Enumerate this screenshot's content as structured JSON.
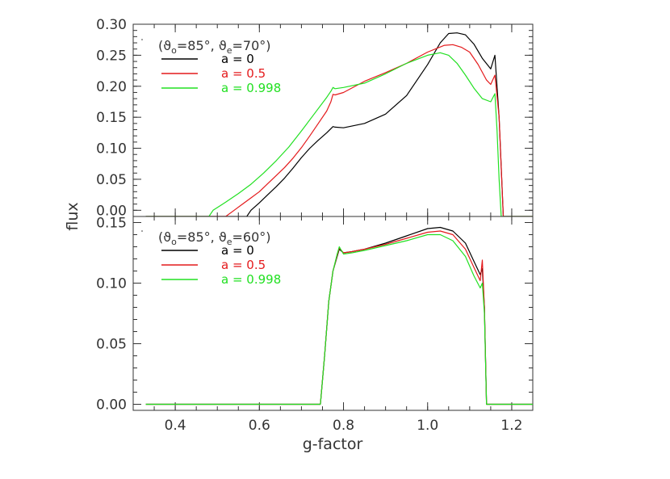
{
  "colors": {
    "a0": "#000000",
    "a05": "#e41a1c",
    "a0998": "#22e022",
    "axis": "#333333"
  },
  "chart_data": [
    {
      "type": "line",
      "panel": "top",
      "xlabel": "g-factor",
      "ylabel": "flux",
      "xlim": [
        0.3,
        1.25
      ],
      "ylim": [
        -0.01,
        0.3
      ],
      "yticks": [
        "0.00",
        "0.05",
        "0.10",
        "0.15",
        "0.20",
        "0.25",
        "0.30"
      ],
      "xticks": [],
      "legend_placement": "top-left",
      "legend_title": {
        "main": "(ϑ",
        "sub1": "o",
        "mid": "=85°,  ϑ",
        "sub2": "e",
        "end": "=70°)"
      },
      "series": [
        {
          "name": "a = 0",
          "color": "#000000",
          "x": [
            0.33,
            0.57,
            0.58,
            0.6,
            0.62,
            0.64,
            0.66,
            0.68,
            0.7,
            0.72,
            0.74,
            0.76,
            0.775,
            0.78,
            0.8,
            0.85,
            0.9,
            0.95,
            1.0,
            1.03,
            1.05,
            1.07,
            1.09,
            1.11,
            1.13,
            1.15,
            1.16,
            1.17,
            1.18,
            1.25
          ],
          "y": [
            -0.01,
            -0.01,
            0.0,
            0.012,
            0.025,
            0.038,
            0.052,
            0.068,
            0.085,
            0.1,
            0.113,
            0.125,
            0.135,
            0.134,
            0.133,
            0.14,
            0.155,
            0.185,
            0.235,
            0.27,
            0.285,
            0.286,
            0.283,
            0.268,
            0.245,
            0.228,
            0.25,
            0.15,
            -0.01,
            -0.01
          ]
        },
        {
          "name": "a = 0.5",
          "color": "#e41a1c",
          "x": [
            0.33,
            0.52,
            0.54,
            0.56,
            0.58,
            0.6,
            0.62,
            0.64,
            0.66,
            0.68,
            0.7,
            0.72,
            0.74,
            0.76,
            0.77,
            0.775,
            0.78,
            0.8,
            0.85,
            0.9,
            0.95,
            1.0,
            1.04,
            1.06,
            1.08,
            1.1,
            1.12,
            1.14,
            1.15,
            1.16,
            1.17,
            1.18,
            1.25
          ],
          "y": [
            -0.01,
            -0.01,
            0.0,
            0.01,
            0.02,
            0.03,
            0.043,
            0.056,
            0.069,
            0.084,
            0.101,
            0.12,
            0.14,
            0.16,
            0.175,
            0.187,
            0.186,
            0.19,
            0.208,
            0.222,
            0.237,
            0.255,
            0.266,
            0.267,
            0.263,
            0.255,
            0.235,
            0.21,
            0.203,
            0.218,
            0.15,
            -0.01,
            -0.01
          ]
        },
        {
          "name": "a = 0.998",
          "color": "#22e022",
          "x": [
            0.33,
            0.48,
            0.49,
            0.52,
            0.55,
            0.58,
            0.61,
            0.64,
            0.67,
            0.7,
            0.73,
            0.76,
            0.77,
            0.775,
            0.78,
            0.8,
            0.85,
            0.9,
            0.95,
            1.0,
            1.03,
            1.05,
            1.07,
            1.09,
            1.11,
            1.13,
            1.15,
            1.16,
            1.165,
            1.17,
            1.175,
            1.25
          ],
          "y": [
            -0.01,
            -0.01,
            0.0,
            0.013,
            0.027,
            0.042,
            0.06,
            0.08,
            0.102,
            0.128,
            0.155,
            0.182,
            0.192,
            0.198,
            0.196,
            0.198,
            0.205,
            0.22,
            0.237,
            0.25,
            0.254,
            0.25,
            0.237,
            0.218,
            0.197,
            0.18,
            0.175,
            0.188,
            0.13,
            0.05,
            -0.01,
            -0.01
          ]
        }
      ]
    },
    {
      "type": "line",
      "panel": "bottom",
      "xlabel": "g-factor",
      "ylabel": "flux",
      "xlim": [
        0.3,
        1.25
      ],
      "ylim": [
        -0.005,
        0.155
      ],
      "yticks": [
        "0.00",
        "0.05",
        "0.10",
        "0.15"
      ],
      "xticks": [
        "0.4",
        "0.6",
        "0.8",
        "1.0",
        "1.2"
      ],
      "legend_placement": "top-left",
      "legend_title": {
        "main": "(ϑ",
        "sub1": "o",
        "mid": "=85°,  ϑ",
        "sub2": "e",
        "end": "=60°)"
      },
      "series": [
        {
          "name": "a = 0",
          "color": "#000000",
          "x": [
            0.33,
            0.745,
            0.755,
            0.765,
            0.775,
            0.785,
            0.79,
            0.8,
            0.82,
            0.85,
            0.9,
            0.95,
            1.0,
            1.03,
            1.06,
            1.09,
            1.11,
            1.125,
            1.13,
            1.135,
            1.14,
            1.25
          ],
          "y": [
            0,
            0,
            0.04,
            0.085,
            0.11,
            0.122,
            0.128,
            0.125,
            0.126,
            0.128,
            0.133,
            0.139,
            0.145,
            0.146,
            0.143,
            0.133,
            0.118,
            0.107,
            0.112,
            0.08,
            0,
            0
          ]
        },
        {
          "name": "a = 0.5",
          "color": "#e41a1c",
          "x": [
            0.33,
            0.745,
            0.755,
            0.765,
            0.775,
            0.785,
            0.79,
            0.8,
            0.82,
            0.85,
            0.9,
            0.95,
            1.0,
            1.03,
            1.06,
            1.09,
            1.11,
            1.125,
            1.13,
            1.135,
            1.14,
            1.25
          ],
          "y": [
            0,
            0,
            0.04,
            0.085,
            0.11,
            0.123,
            0.129,
            0.125,
            0.126,
            0.128,
            0.132,
            0.137,
            0.142,
            0.143,
            0.14,
            0.128,
            0.113,
            0.102,
            0.119,
            0.08,
            0,
            0
          ]
        },
        {
          "name": "a = 0.998",
          "color": "#22e022",
          "x": [
            0.33,
            0.745,
            0.755,
            0.765,
            0.775,
            0.785,
            0.79,
            0.8,
            0.82,
            0.85,
            0.9,
            0.95,
            1.0,
            1.03,
            1.06,
            1.09,
            1.11,
            1.125,
            1.13,
            1.135,
            1.14,
            1.25
          ],
          "y": [
            0,
            0,
            0.04,
            0.085,
            0.11,
            0.124,
            0.13,
            0.124,
            0.125,
            0.127,
            0.131,
            0.135,
            0.14,
            0.14,
            0.135,
            0.122,
            0.106,
            0.096,
            0.1,
            0.075,
            0,
            0
          ]
        }
      ]
    }
  ]
}
